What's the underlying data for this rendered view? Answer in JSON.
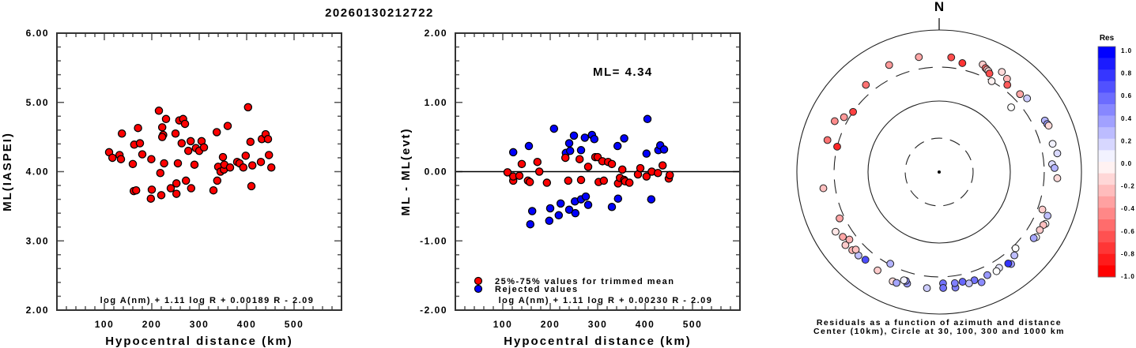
{
  "title": "20260130212722",
  "chart_data": [
    {
      "type": "scatter",
      "name": "ml-vs-distance",
      "xlabel": "Hypocentral distance (km)",
      "ylabel": "ML(IASPEI)",
      "xlim": [
        0,
        600
      ],
      "ylim": [
        2.0,
        6.0
      ],
      "xticks": [
        100,
        200,
        300,
        400,
        500
      ],
      "yticks": [
        "2.00",
        "3.00",
        "4.00",
        "5.00",
        "6.00"
      ],
      "yticks_values": [
        2.0,
        3.0,
        4.0,
        5.0,
        6.0
      ],
      "formula": "log A(nm) + 1.11 log R + 0.00189 R - 2.09",
      "color": "#ff0000",
      "points": [
        [
          110,
          4.28
        ],
        [
          117,
          4.2
        ],
        [
          132,
          4.24
        ],
        [
          135,
          4.18
        ],
        [
          137,
          4.55
        ],
        [
          160,
          4.11
        ],
        [
          162,
          3.72
        ],
        [
          163,
          4.39
        ],
        [
          167,
          3.73
        ],
        [
          171,
          4.63
        ],
        [
          175,
          4.41
        ],
        [
          180,
          4.25
        ],
        [
          198,
          3.61
        ],
        [
          200,
          3.74
        ],
        [
          199,
          4.18
        ],
        [
          215,
          4.88
        ],
        [
          222,
          4.64
        ],
        [
          218,
          3.98
        ],
        [
          220,
          3.66
        ],
        [
          224,
          4.53
        ],
        [
          222,
          4.5
        ],
        [
          226,
          4.12
        ],
        [
          230,
          4.76
        ],
        [
          240,
          3.76
        ],
        [
          250,
          4.55
        ],
        [
          252,
          3.68
        ],
        [
          252,
          3.83
        ],
        [
          255,
          4.12
        ],
        [
          258,
          4.74
        ],
        [
          263,
          4.41
        ],
        [
          266,
          4.76
        ],
        [
          270,
          4.69
        ],
        [
          272,
          3.87
        ],
        [
          277,
          4.3
        ],
        [
          282,
          4.44
        ],
        [
          283,
          3.76
        ],
        [
          290,
          4.1
        ],
        [
          293,
          4.34
        ],
        [
          300,
          4.3
        ],
        [
          305,
          4.44
        ],
        [
          310,
          4.35
        ],
        [
          330,
          3.73
        ],
        [
          337,
          4.57
        ],
        [
          338,
          3.87
        ],
        [
          340,
          4.07
        ],
        [
          345,
          4.0
        ],
        [
          352,
          4.03
        ],
        [
          350,
          4.21
        ],
        [
          353,
          4.1
        ],
        [
          360,
          4.66
        ],
        [
          365,
          4.06
        ],
        [
          380,
          4.14
        ],
        [
          385,
          4.12
        ],
        [
          393,
          4.06
        ],
        [
          398,
          4.23
        ],
        [
          403,
          4.93
        ],
        [
          408,
          4.43
        ],
        [
          410,
          3.79
        ],
        [
          412,
          4.09
        ],
        [
          430,
          4.14
        ],
        [
          432,
          4.47
        ],
        [
          440,
          4.54
        ],
        [
          445,
          4.47
        ],
        [
          447,
          4.24
        ],
        [
          452,
          4.06
        ]
      ]
    },
    {
      "type": "scatter",
      "name": "residual-vs-distance",
      "xlabel": "Hypocentral distance (km)",
      "ylabel": "ML - ML(evt)",
      "xlim": [
        0,
        600
      ],
      "ylim": [
        -2.0,
        2.0
      ],
      "xticks": [
        100,
        200,
        300,
        400,
        500
      ],
      "yticks": [
        "-2.00",
        "-1.00",
        "0.00",
        "1.00",
        "2.00"
      ],
      "yticks_values": [
        -2.0,
        -1.0,
        0.0,
        1.0,
        2.0
      ],
      "annotation": "ML= 4.34",
      "ml_event": 4.34,
      "formula": "log A(nm) + 1.11 log R + 0.00230 R - 2.09",
      "legend": [
        {
          "label": "25%-75% values for trimmed mean",
          "color": "#ff0000"
        },
        {
          "label": "Rejected values",
          "color": "#0000ff"
        }
      ],
      "legend_position": "bottom-left",
      "zero_line": true,
      "series": [
        {
          "name": "25%-75% values for trimmed mean",
          "color": "#ff0000",
          "points": [
            [
              110,
              -0.01
            ],
            [
              122,
              -0.13
            ],
            [
              122,
              -0.07
            ],
            [
              135,
              -0.06
            ],
            [
              140,
              0.11
            ],
            [
              153,
              -0.13
            ],
            [
              157,
              -0.15
            ],
            [
              173,
              0.14
            ],
            [
              177,
              0.0
            ],
            [
              193,
              -0.16
            ],
            [
              232,
              0.2
            ],
            [
              238,
              -0.13
            ],
            [
              262,
              0.18
            ],
            [
              265,
              -0.12
            ],
            [
              280,
              0.07
            ],
            [
              295,
              0.21
            ],
            [
              300,
              0.21
            ],
            [
              302,
              -0.15
            ],
            [
              310,
              0.15
            ],
            [
              313,
              -0.13
            ],
            [
              322,
              0.14
            ],
            [
              330,
              0.11
            ],
            [
              343,
              -0.17
            ],
            [
              347,
              -0.09
            ],
            [
              352,
              0.03
            ],
            [
              356,
              -0.12
            ],
            [
              358,
              -0.14
            ],
            [
              367,
              -0.16
            ],
            [
              385,
              -0.04
            ],
            [
              390,
              0.05
            ],
            [
              403,
              -0.07
            ],
            [
              414,
              0.0
            ],
            [
              427,
              -0.02
            ],
            [
              437,
              0.09
            ],
            [
              450,
              -0.1
            ],
            [
              452,
              -0.05
            ]
          ]
        },
        {
          "name": "Rejected values",
          "color": "#0000ff",
          "points": [
            [
              122,
              0.28
            ],
            [
              158,
              -0.76
            ],
            [
              162,
              -0.57
            ],
            [
              155,
              0.37
            ],
            [
              198,
              -0.71
            ],
            [
              200,
              -0.53
            ],
            [
              208,
              0.62
            ],
            [
              218,
              -0.63
            ],
            [
              222,
              -0.46
            ],
            [
              233,
              0.27
            ],
            [
              240,
              0.41
            ],
            [
              242,
              0.3
            ],
            [
              240,
              -0.55
            ],
            [
              250,
              0.52
            ],
            [
              252,
              -0.43
            ],
            [
              253,
              -0.6
            ],
            [
              265,
              0.31
            ],
            [
              265,
              -0.4
            ],
            [
              273,
              0.49
            ],
            [
              275,
              -0.36
            ],
            [
              280,
              -0.48
            ],
            [
              288,
              0.53
            ],
            [
              293,
              0.47
            ],
            [
              330,
              -0.51
            ],
            [
              342,
              0.37
            ],
            [
              343,
              -0.39
            ],
            [
              356,
              0.48
            ],
            [
              403,
              0.26
            ],
            [
              405,
              0.76
            ],
            [
              413,
              -0.4
            ],
            [
              428,
              0.31
            ],
            [
              432,
              0.38
            ],
            [
              440,
              0.32
            ]
          ]
        }
      ]
    },
    {
      "type": "scatter",
      "name": "residual-azimuth-map",
      "projection": "polar",
      "north_label": "N",
      "caption_line1": "Residuals as a function of azimuth and distance",
      "caption_line2": "Center (10km), Circle at 30, 100, 300 and 1000 km",
      "rings_km": [
        30,
        100,
        300,
        1000
      ],
      "ring_styles": [
        "dashed",
        "solid",
        "dashed",
        "solid"
      ],
      "colorbar": {
        "title": "Res",
        "range": [
          -1.0,
          1.0
        ],
        "labels": [
          "1.0",
          "0.8",
          "0.6",
          "0.4",
          "0.2",
          "0.0",
          "-0.2",
          "-0.4",
          "-0.6",
          "-0.8",
          "-1.0"
        ],
        "low_color": "#ff0000",
        "mid_color": "#ffffff",
        "high_color": "#0000ff"
      },
      "stations": [
        {
          "az": 335,
          "dist": 460,
          "res": -0.4
        },
        {
          "az": 320,
          "dist": 400,
          "res": -0.55
        },
        {
          "az": 350,
          "dist": 440,
          "res": -0.35
        },
        {
          "az": 305,
          "dist": 300,
          "res": -0.75
        },
        {
          "az": 296,
          "dist": 430,
          "res": -0.45
        },
        {
          "az": 300,
          "dist": 350,
          "res": -0.4
        },
        {
          "az": 286,
          "dist": 430,
          "res": -0.55
        },
        {
          "az": 284,
          "dist": 300,
          "res": -0.85
        },
        {
          "az": 6,
          "dist": 420,
          "res": -0.7
        },
        {
          "az": 12,
          "dist": 370,
          "res": -0.8
        },
        {
          "az": 22,
          "dist": 430,
          "res": -0.2
        },
        {
          "az": 24,
          "dist": 400,
          "res": -0.6
        },
        {
          "az": 25,
          "dist": 390,
          "res": -0.25
        },
        {
          "az": 26,
          "dist": 380,
          "res": -0.15
        },
        {
          "az": 27,
          "dist": 360,
          "res": -0.7
        },
        {
          "az": 32,
          "dist": 460,
          "res": -0.15
        },
        {
          "az": 36,
          "dist": 420,
          "res": -0.3
        },
        {
          "az": 38,
          "dist": 360,
          "res": -0.65
        },
        {
          "az": 30,
          "dist": 300,
          "res": -0.05
        },
        {
          "az": 46,
          "dist": 380,
          "res": -0.35
        },
        {
          "az": 50,
          "dist": 410,
          "res": 0.2
        },
        {
          "az": 48,
          "dist": 230,
          "res": 0.0
        },
        {
          "az": 64,
          "dist": 450,
          "res": 0.3
        },
        {
          "az": 66,
          "dist": 460,
          "res": 0.4
        },
        {
          "az": 67,
          "dist": 470,
          "res": -0.15
        },
        {
          "az": 76,
          "dist": 440,
          "res": 0.05
        },
        {
          "az": 81,
          "dist": 480,
          "res": 0.15
        },
        {
          "az": 86,
          "dist": 390,
          "res": 0.15
        },
        {
          "az": 88,
          "dist": 420,
          "res": 0.3
        },
        {
          "az": 93,
          "dist": 460,
          "res": -0.15
        },
        {
          "az": 110,
          "dist": 350,
          "res": -0.2
        },
        {
          "az": 112,
          "dist": 440,
          "res": 0.25
        },
        {
          "az": 116,
          "dist": 460,
          "res": 0.0
        },
        {
          "az": 117,
          "dist": 440,
          "res": -0.25
        },
        {
          "az": 120,
          "dist": 430,
          "res": -0.2
        },
        {
          "az": 124,
          "dist": 440,
          "res": 0.0
        },
        {
          "az": 125,
          "dist": 420,
          "res": 0.35
        },
        {
          "az": 135,
          "dist": 330,
          "res": 0.0
        },
        {
          "az": 138,
          "dist": 380,
          "res": 0.25
        },
        {
          "az": 142,
          "dist": 440,
          "res": 0.4
        },
        {
          "az": 143,
          "dist": 410,
          "res": 0.8
        },
        {
          "az": 148,
          "dist": 390,
          "res": 0.1
        },
        {
          "az": 150,
          "dist": 410,
          "res": 0.0
        },
        {
          "az": 155,
          "dist": 400,
          "res": 0.4
        },
        {
          "az": 159,
          "dist": 460,
          "res": 0.45
        },
        {
          "az": 162,
          "dist": 400,
          "res": 0.55
        },
        {
          "az": 165,
          "dist": 420,
          "res": 0.25
        },
        {
          "az": 168,
          "dist": 380,
          "res": 0.6
        },
        {
          "az": 172,
          "dist": 440,
          "res": 0.5
        },
        {
          "az": 172,
          "dist": 380,
          "res": 0.5
        },
        {
          "az": 178,
          "dist": 370,
          "res": 0.55
        },
        {
          "az": 178,
          "dist": 430,
          "res": 0.55
        },
        {
          "az": 186,
          "dist": 440,
          "res": 0.2
        },
        {
          "az": 196,
          "dist": 430,
          "res": 0.4
        },
        {
          "az": 197,
          "dist": 400,
          "res": 0.45
        },
        {
          "az": 198,
          "dist": 400,
          "res": 0.05
        },
        {
          "az": 203,
          "dist": 470,
          "res": -0.15
        },
        {
          "az": 201,
          "dist": 470,
          "res": 0.35
        },
        {
          "az": 208,
          "dist": 290,
          "res": 0.3
        },
        {
          "az": 212,
          "dist": 430,
          "res": -0.2
        },
        {
          "az": 220,
          "dist": 410,
          "res": 0.7
        },
        {
          "az": 224,
          "dist": 430,
          "res": 0.25
        },
        {
          "az": 228,
          "dist": 440,
          "res": -0.3
        },
        {
          "az": 227,
          "dist": 400,
          "res": -0.25
        },
        {
          "az": 232,
          "dist": 470,
          "res": -0.2
        },
        {
          "az": 233,
          "dist": 380,
          "res": -0.3
        },
        {
          "az": 236,
          "dist": 430,
          "res": -0.35
        },
        {
          "az": 240,
          "dist": 480,
          "res": -0.1
        },
        {
          "az": 245,
          "dist": 350,
          "res": -0.35
        },
        {
          "az": 262,
          "dist": 440,
          "res": -0.25
        }
      ]
    }
  ]
}
